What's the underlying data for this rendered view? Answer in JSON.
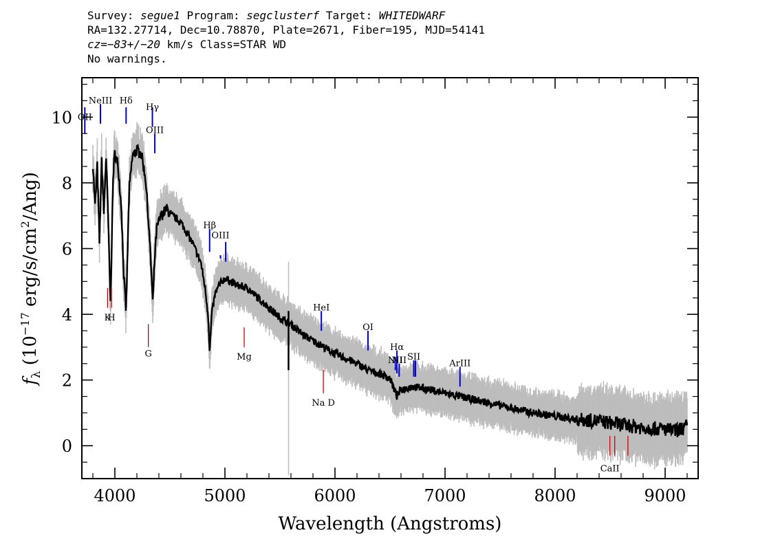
{
  "header": {
    "survey_label": "Survey:",
    "survey": "segue1",
    "program_label": "Program:",
    "program": "segclusterf",
    "target_label": "Target:",
    "target": "WHITEDWARF",
    "line2": "RA=132.27714, Dec=10.78870, Plate=2671, Fiber=195, MJD=54141",
    "cz_label": "cz=",
    "cz_value": "−83+/−20",
    "cz_units": " km/s Class=STAR WD",
    "line4": "No warnings."
  },
  "colors": {
    "spectrum": "#000000",
    "error_band": "#bdbdbd",
    "emission_marker": "#0000cc",
    "absorption_marker": "#cc0000",
    "frame": "#000000"
  },
  "chart_data": {
    "type": "line",
    "xlabel": "Wavelength (Angstroms)",
    "ylabel_main": "f",
    "ylabel_sub": "λ",
    "ylabel_units": " (10",
    "ylabel_exp": "−17",
    "ylabel_units2": " erg/s/cm",
    "ylabel_exp2": "2",
    "ylabel_units3": "/Ang)",
    "xlim": [
      3700,
      9300
    ],
    "ylim": [
      -1,
      11.2
    ],
    "x_ticks": [
      4000,
      5000,
      6000,
      7000,
      8000,
      9000
    ],
    "x_tick_labels": [
      "4000",
      "5000",
      "6000",
      "7000",
      "8000",
      "9000"
    ],
    "y_ticks": [
      0,
      2,
      4,
      6,
      8,
      10
    ],
    "y_tick_labels": [
      "0",
      "2",
      "4",
      "6",
      "8",
      "10"
    ],
    "grid": false,
    "series": [
      {
        "x": [
          3800,
          3820,
          3840,
          3860,
          3880,
          3900,
          3920,
          3940,
          3960,
          3970,
          3985,
          4000,
          4030,
          4060,
          4080,
          4102,
          4130,
          4160,
          4200,
          4240,
          4280,
          4310,
          4330,
          4345,
          4360,
          4380,
          4420,
          4470,
          4520,
          4600,
          4700,
          4780,
          4820,
          4850,
          4861,
          4880,
          4910,
          4950,
          5000,
          5100,
          5200,
          5300,
          5400,
          5500,
          5600,
          5700,
          5800,
          5900,
          6000,
          6100,
          6200,
          6300,
          6400,
          6500,
          6540,
          6563,
          6600,
          6700,
          6800,
          7000,
          7200,
          7400,
          7600,
          7800,
          8000,
          8200,
          8400,
          8600,
          8800,
          9000,
          9100,
          9200
        ],
        "y": [
          8.6,
          7.3,
          8.5,
          6.2,
          8.7,
          7.1,
          8.8,
          6.8,
          4.3,
          5.9,
          8.3,
          8.9,
          8.5,
          7.2,
          5.2,
          4.1,
          7.8,
          8.8,
          9.0,
          8.9,
          8.1,
          6.6,
          5.4,
          4.3,
          5.6,
          6.6,
          7.0,
          7.2,
          7.0,
          6.8,
          6.2,
          5.6,
          4.8,
          3.9,
          2.8,
          4.0,
          4.6,
          4.9,
          5.1,
          4.9,
          4.8,
          4.5,
          4.2,
          3.9,
          3.7,
          3.4,
          3.2,
          3.0,
          2.8,
          2.65,
          2.5,
          2.3,
          2.2,
          2.05,
          1.7,
          1.5,
          1.7,
          1.8,
          1.75,
          1.6,
          1.45,
          1.3,
          1.15,
          1.0,
          0.9,
          0.8,
          0.75,
          0.65,
          0.55,
          0.5,
          0.45,
          0.6
        ]
      }
    ],
    "spikes": [
      {
        "x": 5578,
        "y1": 2.3,
        "y2": 4.1
      },
      {
        "x": 5582,
        "y1": 0,
        "y2": 0
      }
    ],
    "line_markers": [
      {
        "label": "OII",
        "x": 3727,
        "y_top": 10.3,
        "y_bottom": 9.5,
        "kind": "emission",
        "label_y": 10.0
      },
      {
        "label": "NeIII",
        "x": 3869,
        "y_top": 10.4,
        "y_bottom": 9.8,
        "kind": "emission",
        "label_y": 10.5
      },
      {
        "label": "Hδ",
        "x": 4102,
        "y_top": 10.3,
        "y_bottom": 9.8,
        "kind": "emission",
        "label_y": 10.5
      },
      {
        "label": "Hγ",
        "x": 4341,
        "y_top": 10.3,
        "y_bottom": 9.7,
        "kind": "emission",
        "label_y": 10.3
      },
      {
        "label": "OIII",
        "x": 4363,
        "y_top": 9.5,
        "y_bottom": 8.9,
        "kind": "emission",
        "label_y": 9.6
      },
      {
        "label": "Hβ",
        "x": 4861,
        "y_top": 6.6,
        "y_bottom": 5.9,
        "kind": "emission",
        "label_y": 6.7
      },
      {
        "label": "OIII",
        "x": 4959,
        "y_top": 5.8,
        "y_bottom": 5.7,
        "kind": "emission",
        "label_y": 6.4
      },
      {
        "label": "",
        "x": 5007,
        "y_top": 6.2,
        "y_bottom": 5.6,
        "kind": "emission",
        "label_y": 0
      },
      {
        "label": "HeI",
        "x": 5876,
        "y_top": 4.1,
        "y_bottom": 3.5,
        "kind": "emission",
        "label_y": 4.2
      },
      {
        "label": "OI",
        "x": 6300,
        "y_top": 3.5,
        "y_bottom": 2.9,
        "kind": "emission",
        "label_y": 3.6
      },
      {
        "label": "NII",
        "x": 6548,
        "y_top": 2.7,
        "y_bottom": 2.3,
        "kind": "emission",
        "label_y": 2.6
      },
      {
        "label": "Hα",
        "x": 6563,
        "y_top": 2.9,
        "y_bottom": 2.2,
        "kind": "emission",
        "label_y": 3.0
      },
      {
        "label": "NII",
        "x": 6583,
        "y_top": 2.5,
        "y_bottom": 2.1,
        "kind": "emission",
        "label_y": 2.6
      },
      {
        "label": "SII",
        "x": 6716,
        "y_top": 2.6,
        "y_bottom": 2.1,
        "kind": "emission",
        "label_y": 2.7
      },
      {
        "label": "",
        "x": 6731,
        "y_top": 2.6,
        "y_bottom": 2.1,
        "kind": "emission",
        "label_y": 0
      },
      {
        "label": "ArIII",
        "x": 7136,
        "y_top": 2.4,
        "y_bottom": 1.8,
        "kind": "emission",
        "label_y": 2.5
      },
      {
        "label": "K",
        "x": 3934,
        "y_top": 4.8,
        "y_bottom": 4.2,
        "kind": "absorption",
        "label_y": 3.9
      },
      {
        "label": "H",
        "x": 3969,
        "y_top": 4.8,
        "y_bottom": 4.2,
        "kind": "absorption",
        "label_y": 3.9
      },
      {
        "label": "G",
        "x": 4304,
        "y_top": 3.7,
        "y_bottom": 3.0,
        "kind": "absorption",
        "label_y": 2.8
      },
      {
        "label": "Mg",
        "x": 5175,
        "y_top": 3.6,
        "y_bottom": 3.0,
        "kind": "absorption",
        "label_y": 2.7
      },
      {
        "label": "Na D",
        "x": 5894,
        "y_top": 2.3,
        "y_bottom": 1.6,
        "kind": "absorption",
        "label_y": 1.3
      },
      {
        "label": "CaII",
        "x": 8498,
        "y_top": 0.3,
        "y_bottom": -0.3,
        "kind": "absorption",
        "label_y": -0.7
      },
      {
        "label": "",
        "x": 8542,
        "y_top": 0.3,
        "y_bottom": -0.3,
        "kind": "absorption",
        "label_y": 0
      },
      {
        "label": "",
        "x": 8662,
        "y_top": 0.3,
        "y_bottom": -0.3,
        "kind": "absorption",
        "label_y": 0
      }
    ]
  }
}
